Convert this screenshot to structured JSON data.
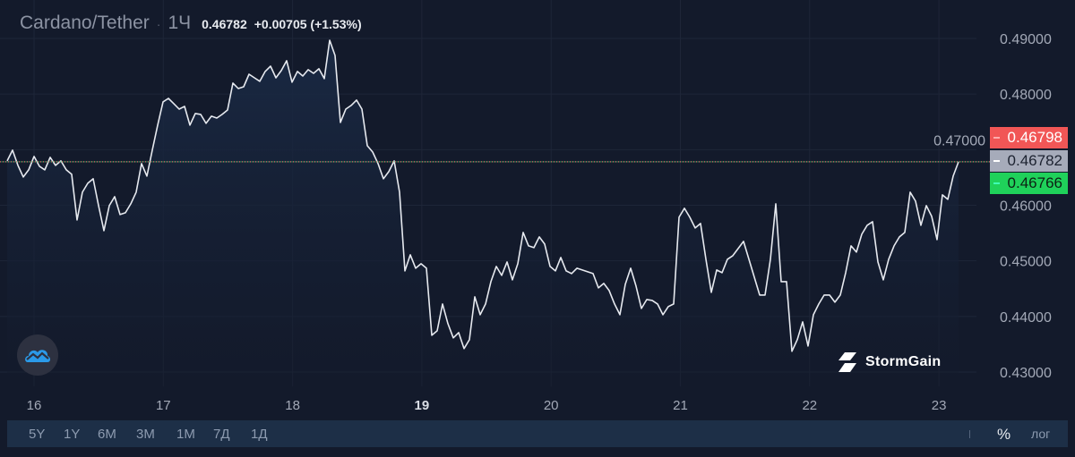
{
  "header": {
    "symbol": "Cardano/Tether",
    "separator": "·",
    "interval": "1Ч",
    "last_price": "0.46782",
    "change": "+0.00705 (+1.53%)"
  },
  "price_labels": {
    "ask": "0.46798",
    "last": "0.46782",
    "bid": "0.46766",
    "ask_color": "#f15656",
    "last_color": "#a6abba",
    "bid_color": "#1fd15a"
  },
  "ranges": [
    "5Y",
    "1Y",
    "6M",
    "3M",
    "1M",
    "7Д",
    "1Д"
  ],
  "scale_buttons": {
    "percent": "%",
    "log": "лог"
  },
  "branding": {
    "watermark": "StormGain",
    "logo_icon": "tradingview-cloud-icon"
  },
  "chart_data": {
    "type": "area",
    "interval": "1Ч",
    "x_start": "15 19:00",
    "x_ticks": [
      "16",
      "17",
      "18",
      "19",
      "20",
      "21",
      "22",
      "23"
    ],
    "y_ticks": [
      "0.49000",
      "0.48000",
      "0.47000",
      "0.46000",
      "0.45000",
      "0.44000",
      "0.43000"
    ],
    "ylim": [
      0.4285,
      0.4965
    ],
    "grid": true,
    "line_color": "#e6e9ef",
    "fill_color": "#1a2a45",
    "values": [
      0.46798,
      0.46991,
      0.46717,
      0.46508,
      0.46637,
      0.46878,
      0.46701,
      0.46637,
      0.46862,
      0.46717,
      0.46798,
      0.46637,
      0.46556,
      0.45736,
      0.46235,
      0.46396,
      0.46476,
      0.45994,
      0.45543,
      0.45994,
      0.46154,
      0.45833,
      0.45865,
      0.46026,
      0.46235,
      0.46749,
      0.46524,
      0.46991,
      0.47441,
      0.47859,
      0.47923,
      0.47827,
      0.4773,
      0.47779,
      0.47441,
      0.4765,
      0.47634,
      0.47473,
      0.47602,
      0.47569,
      0.47634,
      0.47714,
      0.48197,
      0.481,
      0.48132,
      0.48357,
      0.48293,
      0.48229,
      0.48406,
      0.48502,
      0.48293,
      0.48422,
      0.48599,
      0.48213,
      0.48406,
      0.48325,
      0.48438,
      0.48373,
      0.48454,
      0.48277,
      0.48968,
      0.48695,
      0.47489,
      0.4773,
      0.47795,
      0.47891,
      0.4773,
      0.47071,
      0.46958,
      0.46749,
      0.46476,
      0.46605,
      0.46798,
      0.46235,
      0.4482,
      0.45109,
      0.44868,
      0.44948,
      0.44868,
      0.43662,
      0.43742,
      0.44225,
      0.43871,
      0.43614,
      0.4371,
      0.43421,
      0.43582,
      0.44353,
      0.44032,
      0.44225,
      0.44627,
      0.449,
      0.44739,
      0.44981,
      0.44659,
      0.44948,
      0.45511,
      0.4527,
      0.45238,
      0.45431,
      0.45302,
      0.449,
      0.4482,
      0.45061,
      0.4482,
      0.44772,
      0.44868,
      0.44836,
      0.44804,
      0.44772,
      0.44514,
      0.44595,
      0.44466,
      0.44225,
      0.44032,
      0.44579,
      0.44868,
      0.44546,
      0.44144,
      0.44305,
      0.44289,
      0.44225,
      0.44032,
      0.44177,
      0.44225,
      0.45785,
      0.45945,
      0.45785,
      0.45592,
      0.45672,
      0.45029,
      0.44434,
      0.44836,
      0.44788,
      0.45029,
      0.45093,
      0.45222,
      0.4535,
      0.45029,
      0.44707,
      0.44386,
      0.44386,
      0.45029,
      0.46026,
      0.44627,
      0.44627,
      0.43373,
      0.43582,
      0.43903,
      0.43469,
      0.44032,
      0.44225,
      0.44386,
      0.44386,
      0.44257,
      0.44386,
      0.44788,
      0.4527,
      0.45157,
      0.45479,
      0.4564,
      0.45704,
      0.44981,
      0.44659,
      0.45029,
      0.4527,
      0.45431,
      0.45511,
      0.46235,
      0.46074,
      0.4564,
      0.45994,
      0.45801,
      0.45383,
      0.46187,
      0.46106,
      0.46524,
      0.46782
    ]
  }
}
